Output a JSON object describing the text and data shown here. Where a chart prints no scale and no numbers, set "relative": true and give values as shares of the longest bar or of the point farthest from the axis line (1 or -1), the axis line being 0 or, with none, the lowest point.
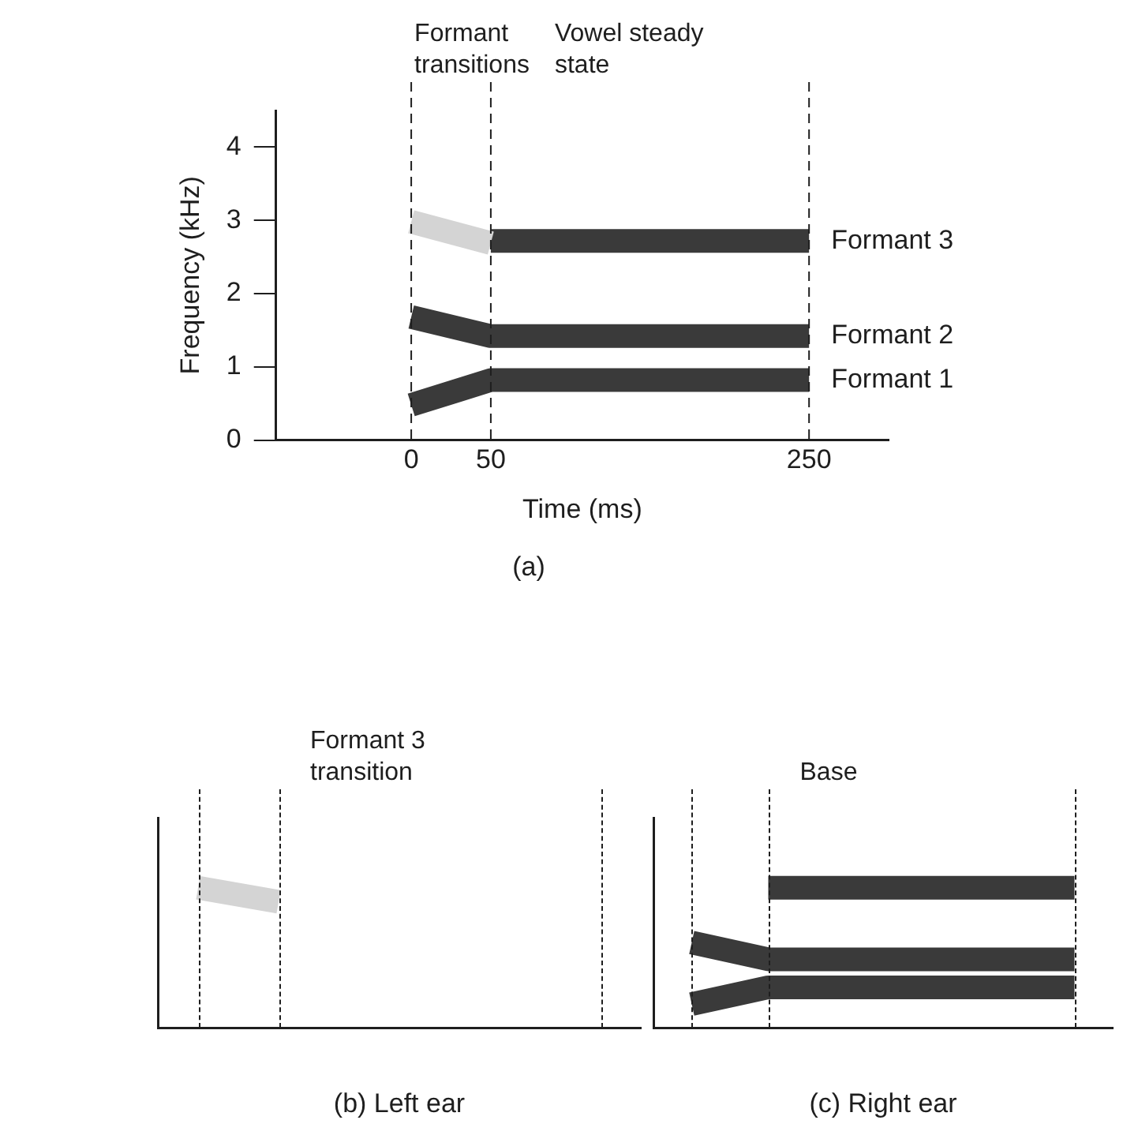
{
  "chart_data": [
    {
      "type": "line",
      "title": "(a)",
      "xlabel": "Time (ms)",
      "ylabel": "Frequency (kHz)",
      "xlim": [
        -85,
        300
      ],
      "xticks": [
        0,
        50,
        250
      ],
      "ylim": [
        0,
        4.5
      ],
      "yticks": [
        0,
        1,
        2,
        3,
        4
      ],
      "grid": false,
      "annotations": [
        "Formant transitions",
        "Vowel steady state"
      ],
      "ref_lines": [
        {
          "axis": "x",
          "value": 0,
          "line_style": "dashed"
        },
        {
          "axis": "x",
          "value": 50,
          "line_style": "dashed"
        },
        {
          "axis": "x",
          "value": 250,
          "line_style": "dashed"
        }
      ],
      "series": [
        {
          "name": "Formant 1",
          "color": "#3a3a3a",
          "x": [
            0,
            50,
            250
          ],
          "values": [
            0.48,
            0.82,
            0.82
          ]
        },
        {
          "name": "Formant 2",
          "color": "#3a3a3a",
          "x": [
            0,
            50,
            250
          ],
          "values": [
            1.68,
            1.42,
            1.42
          ]
        },
        {
          "color": "#d4d4d4",
          "x": [
            0,
            50
          ],
          "values": [
            2.98,
            2.69
          ]
        },
        {
          "name": "Formant 3",
          "color": "#3a3a3a",
          "x": [
            50,
            250
          ],
          "values": [
            2.72,
            2.72
          ]
        }
      ]
    },
    {
      "type": "line",
      "title": "(b) Left ear",
      "relative": true,
      "categories": [
        null,
        null,
        null,
        null,
        null,
        null
      ],
      "grid": "x",
      "annotations": [
        "Formant 3 transition"
      ],
      "series": [
        {
          "color": "#d4d4d4",
          "values": [
            1,
            0.9,
            null,
            null,
            null,
            null
          ]
        }
      ]
    },
    {
      "type": "line",
      "title": "(c) Right ear",
      "relative": true,
      "categories": [
        null,
        null,
        null,
        null,
        null,
        null
      ],
      "grid": "x",
      "annotations": [
        "Base"
      ],
      "series": [
        {
          "color": "#3a3a3a",
          "values": [
            0.17,
            0.29,
            null,
            null,
            null,
            0.29
          ]
        },
        {
          "color": "#3a3a3a",
          "values": [
            0.61,
            0.49,
            null,
            null,
            null,
            0.49
          ]
        },
        {
          "color": "#3a3a3a",
          "values": [
            null,
            1,
            null,
            null,
            null,
            1
          ]
        }
      ]
    }
  ]
}
